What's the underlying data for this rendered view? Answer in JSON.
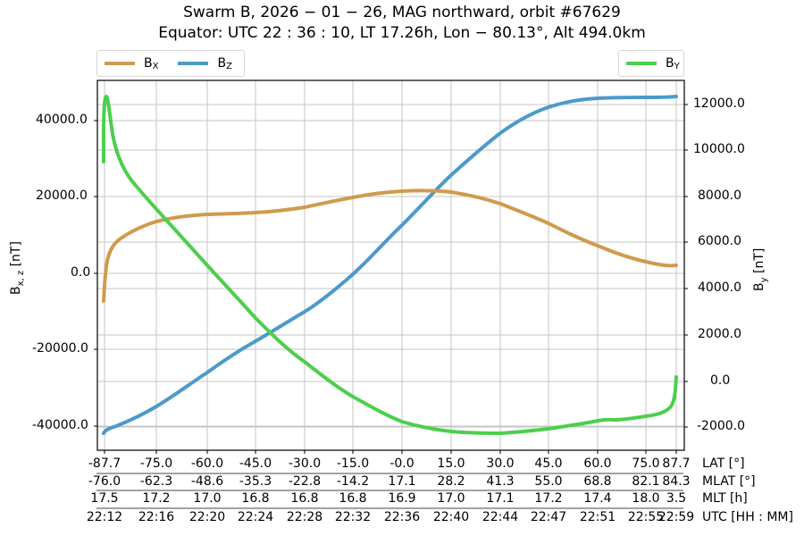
{
  "title": {
    "line1": "Swarm B,  2026 − 01 − 26,  MAG northward,  orbit #67629",
    "line2": "Equator:  UTC 22 : 36 : 10,  LT 17.26h,  Lon  − 80.13°,  Alt 494.0km"
  },
  "legend_left": [
    {
      "label": "B",
      "sub": "X",
      "color": "#d09a4d"
    },
    {
      "label": "B",
      "sub": "Z",
      "color": "#4c9aca"
    }
  ],
  "legend_right": [
    {
      "label": "B",
      "sub": "Y",
      "color": "#4ccf4c"
    }
  ],
  "axes": {
    "left_label": "B",
    "left_label_sub": "x, z",
    "left_label_unit": " [nT]",
    "right_label": "B",
    "right_label_sub": "y",
    "right_label_unit": " [nT]"
  },
  "x_rows": [
    {
      "label": "LAT [°]",
      "values": [
        "-87.7",
        "-75.0",
        "-60.0",
        "-45.0",
        "-30.0",
        "-15.0",
        "-0.0",
        "15.0",
        "30.0",
        "45.0",
        "60.0",
        "75.0",
        "87.7"
      ]
    },
    {
      "label": "MLAT [°]",
      "values": [
        "-76.0",
        "-62.3",
        "-48.6",
        "-35.3",
        "-22.8",
        "-14.2",
        "17.1",
        "28.2",
        "41.3",
        "55.0",
        "68.8",
        "82.1",
        "84.3"
      ]
    },
    {
      "label": "MLT [h]",
      "values": [
        "17.5",
        "17.2",
        "17.0",
        "16.8",
        "16.8",
        "16.8",
        "16.9",
        "17.0",
        "17.1",
        "17.2",
        "17.4",
        "18.0",
        "3.5"
      ]
    },
    {
      "label": "UTC [HH : MM]",
      "values": [
        "22:12",
        "22:16",
        "22:20",
        "22:24",
        "22:28",
        "22:32",
        "22:36",
        "22:40",
        "22:44",
        "22:47",
        "22:51",
        "22:55",
        "22:59"
      ]
    }
  ],
  "chart_data": {
    "type": "line",
    "title": "Swarm B, 2026-01-26, MAG northward, orbit #67629 / Equator: UTC 22:36:10, LT 17.26h, Lon -80.13°, Alt 494.0km",
    "xlabel": "LAT [°] / MLAT [°] / MLT [h] / UTC [HH:MM]",
    "x_categories": [
      "-87.7",
      "-75.0",
      "-60.0",
      "-45.0",
      "-30.0",
      "-15.0",
      "-0.0",
      "15.0",
      "30.0",
      "45.0",
      "60.0",
      "75.0",
      "87.7"
    ],
    "ylabel_left": "Bx,z [nT]",
    "ylabel_right": "By [nT]",
    "ylim_left": [
      -46000,
      51000
    ],
    "ylim_right": [
      -2500,
      13000
    ],
    "yticks_left": [
      "40000.0",
      "20000.0",
      "0.0",
      "-20000.0",
      "-40000.0"
    ],
    "yticks_right": [
      "12000.0",
      "10000.0",
      "8000.0",
      "6000.0",
      "4000.0",
      "2000.0",
      "0.0",
      "-2000.0"
    ],
    "grid": true,
    "legend": [
      {
        "position": "upper left outside",
        "entries": [
          "BX",
          "BZ"
        ]
      },
      {
        "position": "upper right outside",
        "entries": [
          "BY"
        ]
      }
    ],
    "series": [
      {
        "name": "BX",
        "axis": "left",
        "color": "#d09a4d",
        "x": [
          -87.7,
          -87.0,
          -84.0,
          -75.0,
          -60.0,
          -45.0,
          -30.0,
          -15.0,
          -0.0,
          8.0,
          15.0,
          30.0,
          45.0,
          60.0,
          75.0,
          87.7
        ],
        "values": [
          -7300,
          0,
          8500,
          13500,
          15200,
          16000,
          17300,
          19600,
          21200,
          21500,
          21000,
          18300,
          13500,
          8000,
          3500,
          2000
        ]
      },
      {
        "name": "BZ",
        "axis": "left",
        "color": "#4c9aca",
        "x": [
          -87.7,
          -80.0,
          -75.0,
          -60.0,
          -45.0,
          -30.0,
          -15.0,
          -0.0,
          15.0,
          30.0,
          45.0,
          55.0,
          60.0,
          75.0,
          87.7
        ],
        "values": [
          -42000,
          -38000,
          -35000,
          -26000,
          -17500,
          -10500,
          -2500,
          8000,
          20000,
          31000,
          40500,
          44500,
          45200,
          45600,
          46000
        ]
      },
      {
        "name": "BY",
        "axis": "right",
        "color": "#4ccf4c",
        "x": [
          -87.7,
          -87.0,
          -84.0,
          -80.0,
          -75.0,
          -60.0,
          -45.0,
          -30.0,
          -15.0,
          -0.0,
          15.0,
          30.0,
          45.0,
          60.0,
          75.0,
          84.0,
          87.7
        ],
        "values": [
          9500,
          12300,
          9700,
          8300,
          7500,
          5400,
          3100,
          1000,
          -700,
          -1600,
          -1900,
          -2200,
          -2050,
          -1750,
          -1500,
          -1250,
          200
        ]
      }
    ]
  }
}
